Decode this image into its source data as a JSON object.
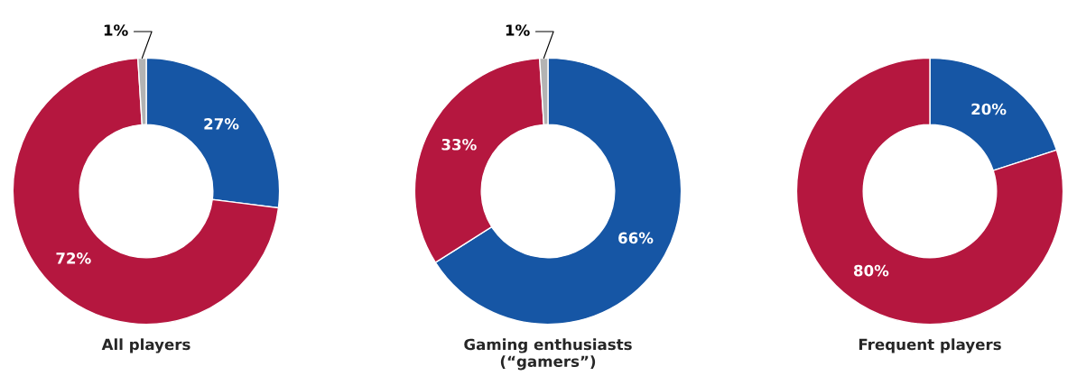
{
  "chart_data": [
    {
      "type": "donut",
      "xlabel": "All players",
      "categories": [
        null,
        null,
        null
      ],
      "values": [
        27,
        72,
        1
      ],
      "colors": [
        "#1656a5",
        "#b5173f",
        "#b3b3b3"
      ],
      "value_labels": [
        "27%",
        "72%",
        "1%"
      ],
      "legend": false
    },
    {
      "type": "donut",
      "xlabel": "Gaming enthusiasts\n(“gamers”)",
      "categories": [
        null,
        null,
        null
      ],
      "values": [
        66,
        33,
        1
      ],
      "colors": [
        "#1656a5",
        "#b5173f",
        "#b3b3b3"
      ],
      "value_labels": [
        "66%",
        "33%",
        "1%"
      ],
      "legend": false
    },
    {
      "type": "donut",
      "xlabel": "Frequent players",
      "categories": [
        null,
        null
      ],
      "values": [
        20,
        80
      ],
      "colors": [
        "#1656a5",
        "#b5173f"
      ],
      "value_labels": [
        "20%",
        "80%"
      ],
      "legend": false
    }
  ]
}
